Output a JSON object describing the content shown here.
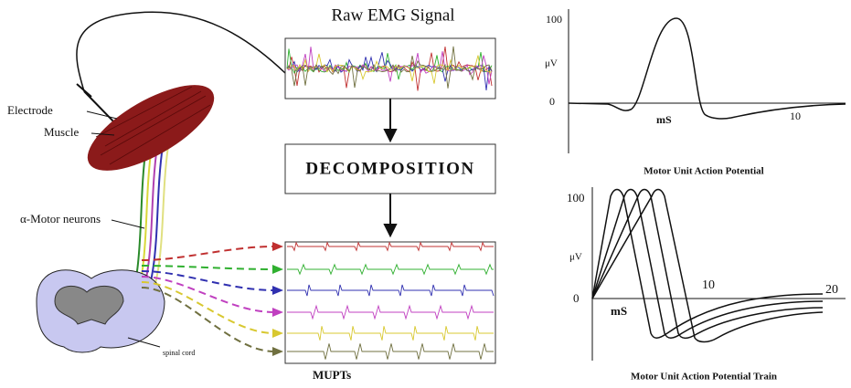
{
  "left": {
    "electrode": "Electrode",
    "muscle": "Muscle",
    "motor_neurons": "α-Motor neurons",
    "spinal_cord": "spinal cord"
  },
  "center": {
    "raw_title": "Raw EMG Signal",
    "decomposition": "DECOMPOSITION",
    "mupts": "MUPTs"
  },
  "top_plot": {
    "y_top": "100",
    "y_unit": "μV",
    "y_zero": "0",
    "x_unit": "mS",
    "x_tick": "10",
    "title": "Motor Unit Action Potential"
  },
  "bottom_plot": {
    "y_top": "100",
    "y_unit": "μV",
    "y_zero": "0",
    "x_unit": "mS",
    "x_tick1": "10",
    "x_tick2": "20",
    "title": "Motor Unit Action Potential Train"
  }
}
